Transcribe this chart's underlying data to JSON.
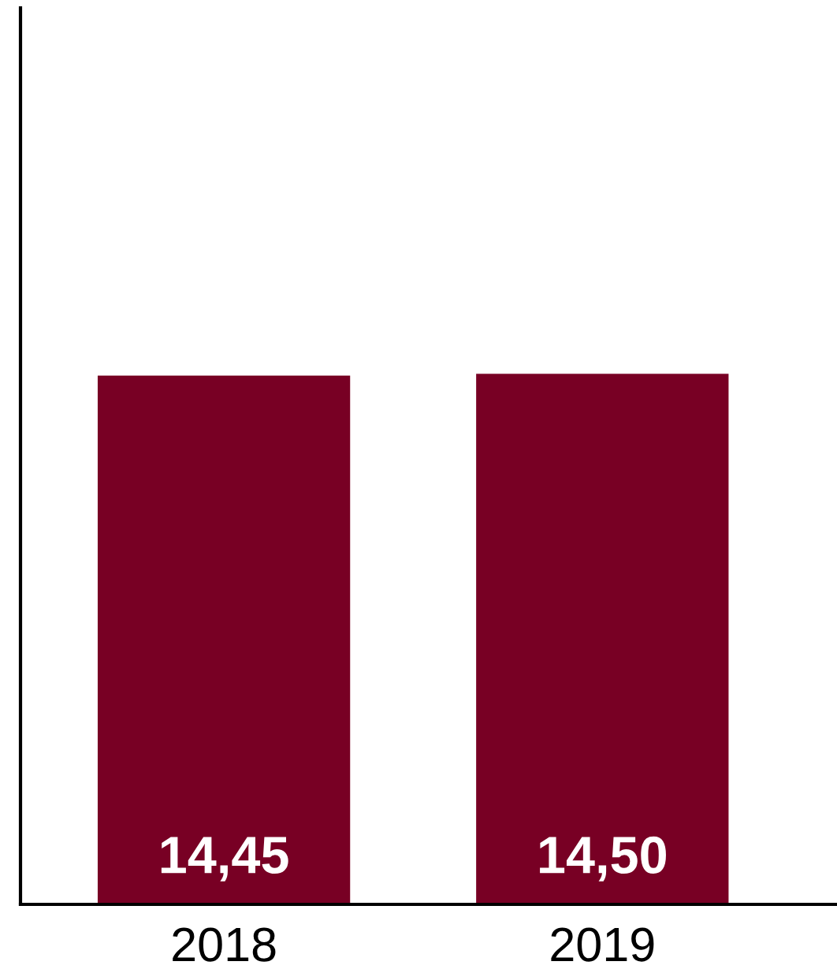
{
  "chart_data": {
    "type": "bar",
    "categories": [
      "2018",
      "2019"
    ],
    "values": [
      14.45,
      14.5
    ],
    "value_labels": [
      "14,45",
      "14,50"
    ],
    "color": "#780024",
    "ylim": [
      0,
      24.5
    ],
    "tick_labels": "x",
    "grid": false,
    "legend": false
  }
}
